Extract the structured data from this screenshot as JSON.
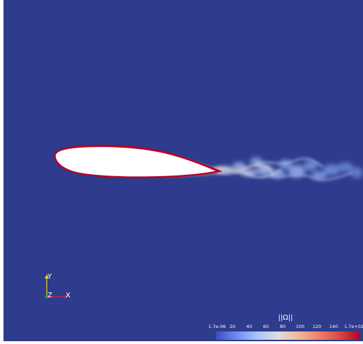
{
  "viewport": {
    "background": "#2f3b8c"
  },
  "orientation_axes": {
    "y_label": "Y",
    "z_label": "Z",
    "x_label": "X",
    "y_color": "#f2d21b",
    "z_color": "#1f9e3a",
    "x_color": "#d8203a"
  },
  "colorbar": {
    "title": "||Ω||",
    "tick_labels": [
      "1.7e-06",
      "20",
      "40",
      "60",
      "80",
      "100",
      "120",
      "140",
      "1.7e+02"
    ],
    "colormap": [
      "#3b4cc0",
      "#6a8bef",
      "#a8c5fd",
      "#dcdddd",
      "#f4b99d",
      "#ee8468",
      "#d44e41",
      "#b40426"
    ]
  },
  "airfoil": {
    "fill": "#ffffff",
    "edge_color": "#b40426"
  }
}
